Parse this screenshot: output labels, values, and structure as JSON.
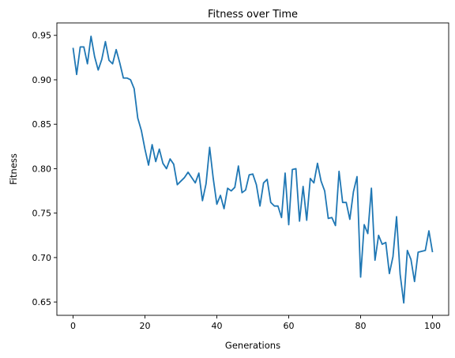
{
  "chart_data": {
    "type": "line",
    "title": "Fitness over Time",
    "xlabel": "Generations",
    "ylabel": "Fitness",
    "xlim": [
      -4.5,
      104.5
    ],
    "ylim": [
      0.635,
      0.964
    ],
    "xticks": [
      0,
      20,
      40,
      60,
      80,
      100
    ],
    "xtick_labels": [
      "0",
      "20",
      "40",
      "60",
      "80",
      "100"
    ],
    "yticks": [
      0.65,
      0.7,
      0.75,
      0.8,
      0.85,
      0.9,
      0.95
    ],
    "ytick_labels": [
      "0.65",
      "0.70",
      "0.75",
      "0.80",
      "0.85",
      "0.90",
      "0.95"
    ],
    "grid": false,
    "line_color": "#1f77b4",
    "series": [
      {
        "x": [
          0,
          1,
          2,
          3,
          4,
          5,
          6,
          7,
          8,
          9,
          10,
          11,
          12,
          13,
          14,
          15,
          16,
          17,
          18,
          19,
          20,
          21,
          22,
          23,
          24,
          25,
          26,
          27,
          28,
          29,
          30,
          31,
          32,
          33,
          34,
          35,
          36,
          37,
          38,
          39,
          40,
          41,
          42,
          43,
          44,
          45,
          46,
          47,
          48,
          49,
          50,
          51,
          52,
          53,
          54,
          55,
          56,
          57,
          58,
          59,
          60,
          61,
          62,
          63,
          64,
          65,
          66,
          67,
          68,
          69,
          70,
          71,
          72,
          73,
          74,
          75,
          76,
          77,
          78,
          79,
          80,
          81,
          82,
          83,
          84,
          85,
          86,
          87,
          88,
          89,
          90,
          91,
          92,
          93,
          94,
          95,
          96,
          97,
          98,
          99,
          100
        ],
        "y": [
          0.936,
          0.906,
          0.937,
          0.937,
          0.918,
          0.949,
          0.926,
          0.911,
          0.923,
          0.943,
          0.922,
          0.918,
          0.934,
          0.919,
          0.902,
          0.902,
          0.9,
          0.89,
          0.857,
          0.843,
          0.822,
          0.804,
          0.827,
          0.808,
          0.822,
          0.806,
          0.8,
          0.811,
          0.805,
          0.782,
          0.786,
          0.79,
          0.796,
          0.79,
          0.784,
          0.795,
          0.764,
          0.783,
          0.824,
          0.789,
          0.76,
          0.77,
          0.755,
          0.778,
          0.775,
          0.779,
          0.803,
          0.773,
          0.776,
          0.793,
          0.794,
          0.782,
          0.758,
          0.784,
          0.788,
          0.762,
          0.758,
          0.758,
          0.745,
          0.795,
          0.737,
          0.799,
          0.8,
          0.741,
          0.78,
          0.742,
          0.789,
          0.784,
          0.806,
          0.786,
          0.775,
          0.744,
          0.745,
          0.736,
          0.797,
          0.762,
          0.762,
          0.743,
          0.774,
          0.791,
          0.678,
          0.737,
          0.727,
          0.778,
          0.697,
          0.725,
          0.715,
          0.717,
          0.682,
          0.701,
          0.746,
          0.681,
          0.649,
          0.708,
          0.698,
          0.673,
          0.706,
          0.707,
          0.708,
          0.73,
          0.706
        ]
      }
    ]
  }
}
